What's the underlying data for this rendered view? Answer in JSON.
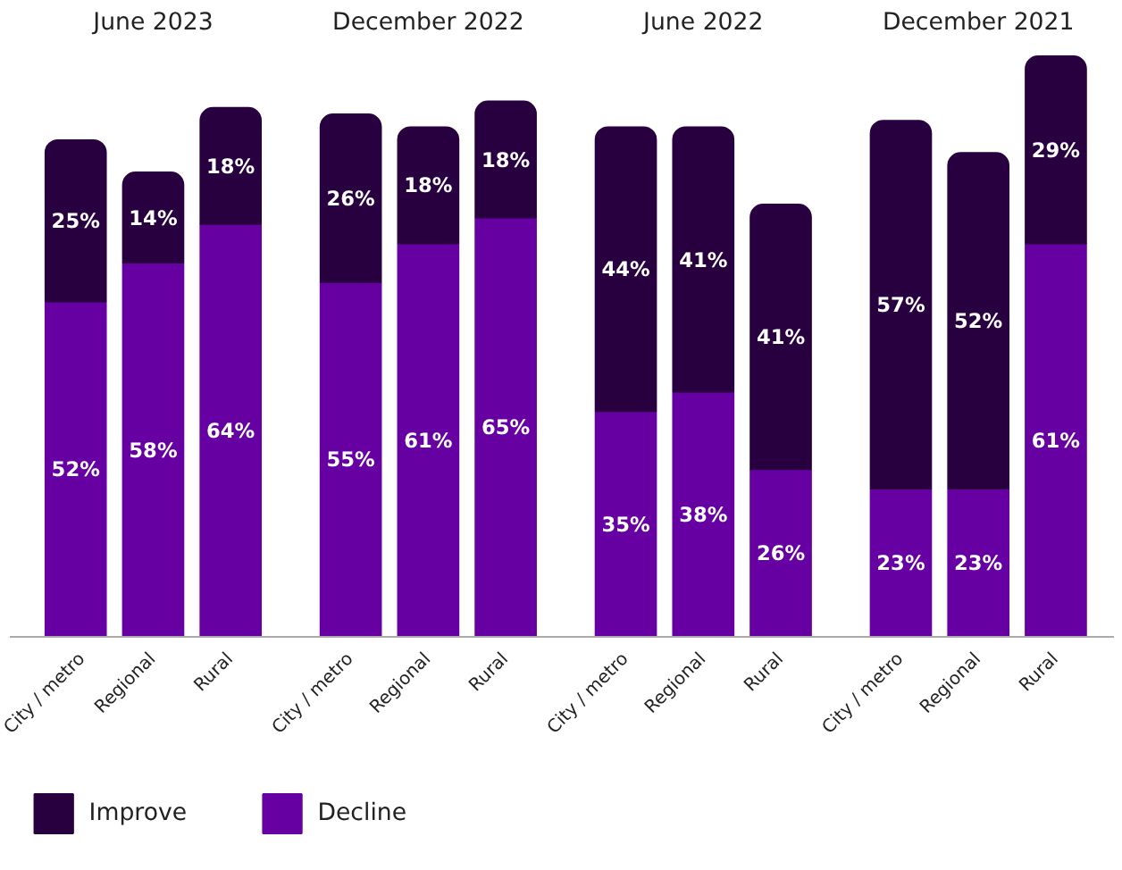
{
  "chart_data": {
    "type": "bar",
    "stacked": true,
    "legend": "bottom",
    "grid": false,
    "categories": [
      "City / metro",
      "Regional",
      "Rural",
      "City / metro",
      "Regional",
      "Rural",
      "City / metro",
      "Regional",
      "Rural",
      "City / metro",
      "Regional",
      "Rural"
    ],
    "annotations": [
      "June 2023",
      "December 2022",
      "June 2022",
      "December 2021"
    ],
    "series": [
      {
        "name": "Decline",
        "color": "#6600a3",
        "values": [
          52,
          58,
          64,
          55,
          61,
          65,
          35,
          38,
          26,
          23,
          23,
          61
        ],
        "value_labels": [
          "52%",
          "58%",
          "64%",
          "55%",
          "61%",
          "65%",
          "35%",
          "38%",
          "26%",
          "23%",
          "23%",
          "61%"
        ]
      },
      {
        "name": "Improve",
        "color": "#280040",
        "values": [
          25,
          14,
          18,
          26,
          18,
          18,
          44,
          41,
          41,
          57,
          52,
          29
        ],
        "value_labels": [
          "25%",
          "14%",
          "18%",
          "26%",
          "18%",
          "18%",
          "44%",
          "41%",
          "41%",
          "57%",
          "52%",
          "29%"
        ]
      }
    ]
  }
}
